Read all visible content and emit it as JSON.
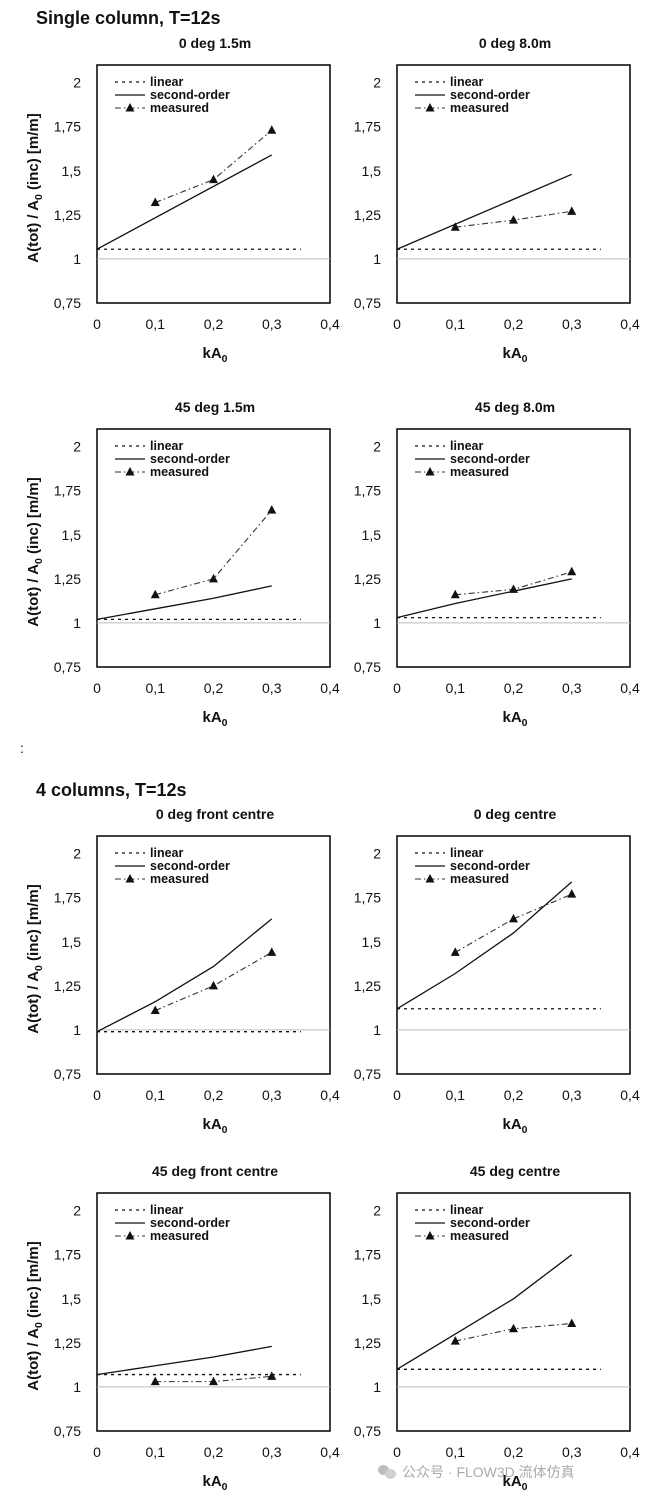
{
  "sections": [
    {
      "title": "Single column, T=12s"
    },
    {
      "title": "4 columns, T=12s"
    }
  ],
  "stray_mark": ":",
  "watermark": "公众号 · FLOW3D 流体仿真",
  "legend_labels": [
    "linear",
    "second-order",
    "measured"
  ],
  "ylabel": "A(tot) / A₀ (inc) [m/m]",
  "xlabel": "kA₀",
  "chart_data": [
    {
      "type": "line",
      "title": "0 deg     1.5m",
      "show_ylabel": true,
      "xlim": [
        0,
        0.4
      ],
      "ylim": [
        0.75,
        2.1
      ],
      "x_ticks": [
        "0",
        "0,1",
        "0,2",
        "0,3",
        "0,4"
      ],
      "y_ticks": [
        "0,75",
        "1",
        "1,25",
        "1,5",
        "1,75",
        "2"
      ],
      "legend": "top-left",
      "series": [
        {
          "name": "linear",
          "x": [
            0,
            0.35
          ],
          "y": [
            1.055,
            1.055
          ]
        },
        {
          "name": "second-order",
          "x": [
            0,
            0.3
          ],
          "y": [
            1.055,
            1.59
          ]
        },
        {
          "name": "measured",
          "x": [
            0.1,
            0.2,
            0.3
          ],
          "y": [
            1.32,
            1.45,
            1.73
          ]
        }
      ]
    },
    {
      "type": "line",
      "title": "0 deg     8.0m",
      "show_ylabel": false,
      "xlim": [
        0,
        0.4
      ],
      "ylim": [
        0.75,
        2.1
      ],
      "x_ticks": [
        "0",
        "0,1",
        "0,2",
        "0,3",
        "0,4"
      ],
      "y_ticks": [
        "0,75",
        "1",
        "1,25",
        "1,5",
        "1,75",
        "2"
      ],
      "legend": "top-left",
      "series": [
        {
          "name": "linear",
          "x": [
            0,
            0.35
          ],
          "y": [
            1.055,
            1.055
          ]
        },
        {
          "name": "second-order",
          "x": [
            0,
            0.3
          ],
          "y": [
            1.055,
            1.48
          ]
        },
        {
          "name": "measured",
          "x": [
            0.1,
            0.2,
            0.3
          ],
          "y": [
            1.18,
            1.22,
            1.27
          ]
        }
      ]
    },
    {
      "type": "line",
      "title": "45 deg     1.5m",
      "show_ylabel": true,
      "xlim": [
        0,
        0.4
      ],
      "ylim": [
        0.75,
        2.1
      ],
      "x_ticks": [
        "0",
        "0,1",
        "0,2",
        "0,3",
        "0,4"
      ],
      "y_ticks": [
        "0,75",
        "1",
        "1,25",
        "1,5",
        "1,75",
        "2"
      ],
      "legend": "top-left",
      "series": [
        {
          "name": "linear",
          "x": [
            0,
            0.35
          ],
          "y": [
            1.02,
            1.02
          ]
        },
        {
          "name": "second-order",
          "x": [
            0,
            0.1,
            0.2,
            0.3
          ],
          "y": [
            1.02,
            1.08,
            1.14,
            1.21
          ]
        },
        {
          "name": "measured",
          "x": [
            0.1,
            0.2,
            0.3
          ],
          "y": [
            1.16,
            1.25,
            1.64
          ]
        }
      ]
    },
    {
      "type": "line",
      "title": "45 deg     8.0m",
      "show_ylabel": false,
      "xlim": [
        0,
        0.4
      ],
      "ylim": [
        0.75,
        2.1
      ],
      "x_ticks": [
        "0",
        "0,1",
        "0,2",
        "0,3",
        "0,4"
      ],
      "y_ticks": [
        "0,75",
        "1",
        "1,25",
        "1,5",
        "1,75",
        "2"
      ],
      "legend": "top-left",
      "series": [
        {
          "name": "linear",
          "x": [
            0,
            0.35
          ],
          "y": [
            1.03,
            1.03
          ]
        },
        {
          "name": "second-order",
          "x": [
            0,
            0.1,
            0.2,
            0.3
          ],
          "y": [
            1.03,
            1.11,
            1.18,
            1.25
          ]
        },
        {
          "name": "measured",
          "x": [
            0.1,
            0.2,
            0.3
          ],
          "y": [
            1.16,
            1.19,
            1.29
          ]
        }
      ]
    },
    {
      "type": "line",
      "title": "0 deg front centre",
      "show_ylabel": true,
      "xlim": [
        0,
        0.4
      ],
      "ylim": [
        0.75,
        2.1
      ],
      "x_ticks": [
        "0",
        "0,1",
        "0,2",
        "0,3",
        "0,4"
      ],
      "y_ticks": [
        "0,75",
        "1",
        "1,25",
        "1,5",
        "1,75",
        "2"
      ],
      "legend": "top-left",
      "series": [
        {
          "name": "linear",
          "x": [
            0,
            0.35
          ],
          "y": [
            0.99,
            0.99
          ]
        },
        {
          "name": "second-order",
          "x": [
            0,
            0.1,
            0.2,
            0.3
          ],
          "y": [
            0.99,
            1.16,
            1.36,
            1.63
          ]
        },
        {
          "name": "measured",
          "x": [
            0.1,
            0.2,
            0.3
          ],
          "y": [
            1.11,
            1.25,
            1.44
          ]
        }
      ]
    },
    {
      "type": "line",
      "title": "0 deg  centre",
      "show_ylabel": false,
      "xlim": [
        0,
        0.4
      ],
      "ylim": [
        0.75,
        2.1
      ],
      "x_ticks": [
        "0",
        "0,1",
        "0,2",
        "0,3",
        "0,4"
      ],
      "y_ticks": [
        "0,75",
        "1",
        "1,25",
        "1,5",
        "1,75",
        "2"
      ],
      "legend": "top-left",
      "series": [
        {
          "name": "linear",
          "x": [
            0,
            0.35
          ],
          "y": [
            1.12,
            1.12
          ]
        },
        {
          "name": "second-order",
          "x": [
            0,
            0.1,
            0.2,
            0.3
          ],
          "y": [
            1.12,
            1.32,
            1.55,
            1.84
          ]
        },
        {
          "name": "measured",
          "x": [
            0.1,
            0.2,
            0.3
          ],
          "y": [
            1.44,
            1.63,
            1.77
          ]
        }
      ]
    },
    {
      "type": "line",
      "title": "45 deg     front centre",
      "show_ylabel": true,
      "xlim": [
        0,
        0.4
      ],
      "ylim": [
        0.75,
        2.1
      ],
      "x_ticks": [
        "0",
        "0,1",
        "0,2",
        "0,3",
        "0,4"
      ],
      "y_ticks": [
        "0,75",
        "1",
        "1,25",
        "1,5",
        "1,75",
        "2"
      ],
      "legend": "top-left",
      "series": [
        {
          "name": "linear",
          "x": [
            0,
            0.35
          ],
          "y": [
            1.07,
            1.07
          ]
        },
        {
          "name": "second-order",
          "x": [
            0,
            0.1,
            0.2,
            0.3
          ],
          "y": [
            1.07,
            1.12,
            1.17,
            1.23
          ]
        },
        {
          "name": "measured",
          "x": [
            0.1,
            0.2,
            0.3
          ],
          "y": [
            1.03,
            1.03,
            1.06
          ]
        }
      ]
    },
    {
      "type": "line",
      "title": "45 deg     centre",
      "show_ylabel": false,
      "xlim": [
        0,
        0.4
      ],
      "ylim": [
        0.75,
        2.1
      ],
      "x_ticks": [
        "0",
        "0,1",
        "0,2",
        "0,3",
        "0,4"
      ],
      "y_ticks": [
        "0,75",
        "1",
        "1,25",
        "1,5",
        "1,75",
        "2"
      ],
      "legend": "top-left",
      "series": [
        {
          "name": "linear",
          "x": [
            0,
            0.35
          ],
          "y": [
            1.1,
            1.1
          ]
        },
        {
          "name": "second-order",
          "x": [
            0,
            0.1,
            0.2,
            0.3
          ],
          "y": [
            1.1,
            1.3,
            1.5,
            1.75
          ]
        },
        {
          "name": "measured",
          "x": [
            0.1,
            0.2,
            0.3
          ],
          "y": [
            1.26,
            1.33,
            1.36
          ]
        }
      ]
    }
  ]
}
